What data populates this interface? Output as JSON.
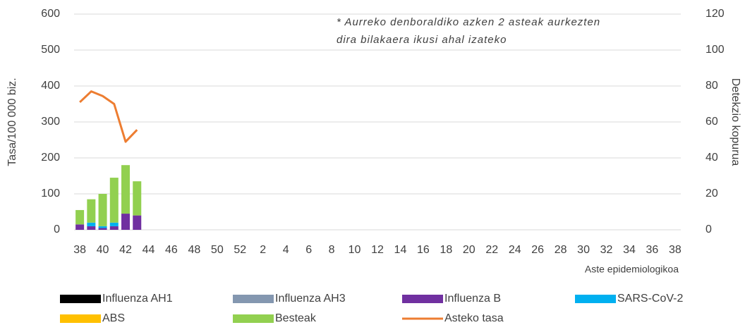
{
  "chart_data": {
    "type": "bar-line",
    "annotation": [
      "* Aurreko denboraldiko azken 2 asteak aurkezten",
      "dira bilakaera ikusi ahal izateko"
    ],
    "x_label": "Aste epidemiologikoa",
    "y_label": "Tasa/100 000 biz.",
    "y2_label": "Detekzio kopurua",
    "categories": [
      38,
      null,
      40,
      null,
      42,
      null,
      44,
      null,
      46,
      null,
      48,
      null,
      50,
      null,
      52,
      null,
      2,
      null,
      4,
      null,
      6,
      null,
      8,
      null,
      10,
      null,
      12,
      null,
      14,
      null,
      16,
      null,
      18,
      null,
      20,
      null,
      22,
      null,
      24,
      null,
      26,
      null,
      28,
      null,
      30,
      null,
      32,
      null,
      34,
      null,
      36,
      null,
      38
    ],
    "ylim": [
      0,
      600
    ],
    "yticks": [
      0,
      100,
      200,
      300,
      400,
      500,
      600
    ],
    "y2lim": [
      0,
      120
    ],
    "y2ticks": [
      0,
      20,
      40,
      60,
      80,
      100,
      120
    ],
    "grid": true,
    "series": [
      {
        "name": "Influenza AH1",
        "color": "#000000",
        "axis": "y2",
        "kind": "bar",
        "values": [
          0,
          0,
          0,
          0,
          0,
          0,
          null,
          null,
          null,
          null,
          null,
          null,
          null,
          null,
          null,
          null,
          null,
          null,
          null,
          null,
          null,
          null,
          null,
          null,
          null,
          null,
          null,
          null,
          null,
          null,
          null,
          null,
          null,
          null,
          null,
          null,
          null,
          null,
          null,
          null,
          null,
          null,
          null,
          null,
          null,
          null,
          null,
          null,
          null,
          null,
          null,
          null,
          null
        ]
      },
      {
        "name": "Influenza AH3",
        "color": "#8497b0",
        "axis": "y2",
        "kind": "bar",
        "values": [
          0,
          0,
          0,
          0,
          0,
          0,
          null,
          null,
          null,
          null,
          null,
          null,
          null,
          null,
          null,
          null,
          null,
          null,
          null,
          null,
          null,
          null,
          null,
          null,
          null,
          null,
          null,
          null,
          null,
          null,
          null,
          null,
          null,
          null,
          null,
          null,
          null,
          null,
          null,
          null,
          null,
          null,
          null,
          null,
          null,
          null,
          null,
          null,
          null,
          null,
          null,
          null,
          null
        ]
      },
      {
        "name": "Influenza B",
        "color": "#7030a0",
        "axis": "y2",
        "kind": "bar",
        "values": [
          3,
          2,
          1,
          2,
          9,
          8,
          null,
          null,
          null,
          null,
          null,
          null,
          null,
          null,
          null,
          null,
          null,
          null,
          null,
          null,
          null,
          null,
          null,
          null,
          null,
          null,
          null,
          null,
          null,
          null,
          null,
          null,
          null,
          null,
          null,
          null,
          null,
          null,
          null,
          null,
          null,
          null,
          null,
          null,
          null,
          null,
          null,
          null,
          null,
          null,
          null,
          null,
          null
        ]
      },
      {
        "name": "SARS-CoV-2",
        "color": "#00b0f0",
        "axis": "y2",
        "kind": "bar",
        "values": [
          0,
          2,
          1,
          2,
          0,
          0,
          null,
          null,
          null,
          null,
          null,
          null,
          null,
          null,
          null,
          null,
          null,
          null,
          null,
          null,
          null,
          null,
          null,
          null,
          null,
          null,
          null,
          null,
          null,
          null,
          null,
          null,
          null,
          null,
          null,
          null,
          null,
          null,
          null,
          null,
          null,
          null,
          null,
          null,
          null,
          null,
          null,
          null,
          null,
          null,
          null,
          null,
          null
        ]
      },
      {
        "name": "ABS",
        "color": "#ffc000",
        "axis": "y2",
        "kind": "bar",
        "values": [
          0,
          0,
          0,
          0,
          0,
          0,
          null,
          null,
          null,
          null,
          null,
          null,
          null,
          null,
          null,
          null,
          null,
          null,
          null,
          null,
          null,
          null,
          null,
          null,
          null,
          null,
          null,
          null,
          null,
          null,
          null,
          null,
          null,
          null,
          null,
          null,
          null,
          null,
          null,
          null,
          null,
          null,
          null,
          null,
          null,
          null,
          null,
          null,
          null,
          null,
          null,
          null,
          null
        ]
      },
      {
        "name": "Besteak",
        "color": "#92d050",
        "axis": "y2",
        "kind": "bar",
        "values": [
          8,
          13,
          18,
          25,
          27,
          19,
          null,
          null,
          null,
          null,
          null,
          null,
          null,
          null,
          null,
          null,
          null,
          null,
          null,
          null,
          null,
          null,
          null,
          null,
          null,
          null,
          null,
          null,
          null,
          null,
          null,
          null,
          null,
          null,
          null,
          null,
          null,
          null,
          null,
          null,
          null,
          null,
          null,
          null,
          null,
          null,
          null,
          null,
          null,
          null,
          null,
          null,
          null
        ]
      },
      {
        "name": "Asteko tasa",
        "color": "#ed7d31",
        "axis": "y",
        "kind": "line",
        "values": [
          355,
          385,
          372,
          350,
          245,
          278,
          null,
          null,
          null,
          null,
          null,
          null,
          null,
          null,
          null,
          null,
          null,
          null,
          null,
          null,
          null,
          null,
          null,
          null,
          null,
          null,
          null,
          null,
          null,
          null,
          null,
          null,
          null,
          null,
          null,
          null,
          null,
          null,
          null,
          null,
          null,
          null,
          null,
          null,
          null,
          null,
          null,
          null,
          null,
          null,
          null,
          null,
          null
        ]
      }
    ]
  }
}
